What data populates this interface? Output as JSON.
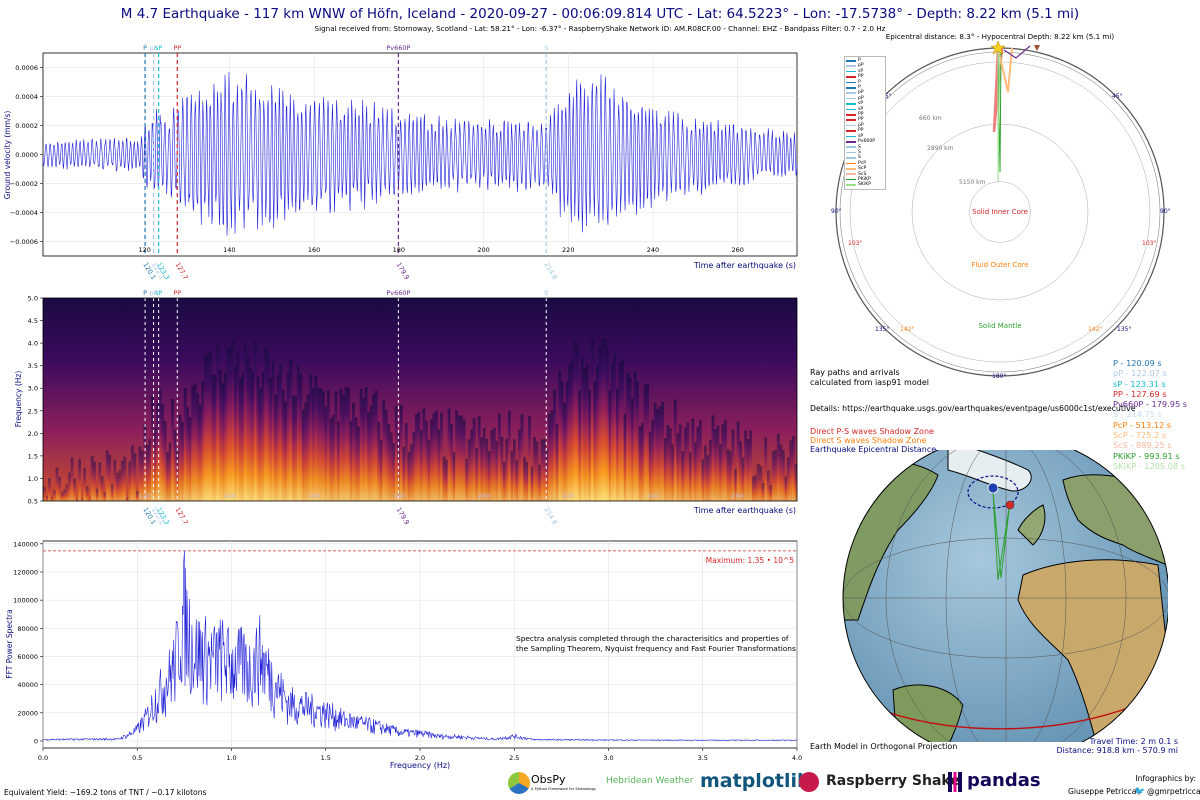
{
  "header": {
    "title": "M 4.7 Earthquake - 117 km WNW of Höfn, Iceland - 2020-09-27 - 00:06:09.814 UTC - Lat: 64.5223° - Lon: -17.5738° - Depth: 8.22 km (5.1 mi)",
    "subtitle": "Signal received from: Stornoway, Scotland - Lat: 58.21° - Lon: -6.37° - RaspberryShake Network ID: AM.R08CF.00 - Channel: EHZ - Bandpass Filter: 0.7 - 2.0 Hz"
  },
  "colors": {
    "trace": "#1f1fd8",
    "title": "#0a0a80",
    "P": "#1f77b4",
    "pP": "#aec7e8",
    "sP": "#17becf",
    "PP": "#d62728",
    "Pv660P": "#6a2c91",
    "S": "#9ecae1",
    "max_line": "#d62728"
  },
  "phases": [
    {
      "name": "P",
      "time": 120.1,
      "color": "#1f77b4"
    },
    {
      "name": "pP",
      "time": 122.1,
      "color": "#aec7e8"
    },
    {
      "name": "sP",
      "time": 123.3,
      "color": "#17becf"
    },
    {
      "name": "PP",
      "time": 127.7,
      "color": "#d62728"
    },
    {
      "name": "Pv660P",
      "time": 179.9,
      "color": "#6a2c91"
    },
    {
      "name": "S",
      "time": 214.8,
      "color": "#9ecae1"
    }
  ],
  "phase_time_labels": [
    "120.1",
    "122.1",
    "123.3",
    "127.7",
    "179.9",
    "214.8"
  ],
  "chart_data": [
    {
      "type": "line",
      "name": "waveform",
      "xlabel": "Time after earthquake (s)",
      "ylabel": "Ground velocity (mm/s)",
      "xlim": [
        96,
        274
      ],
      "ylim": [
        -0.0007,
        0.0007
      ],
      "xticks": [
        120,
        140,
        160,
        180,
        200,
        220,
        240,
        260
      ],
      "yticks": [
        -0.0006,
        -0.0004,
        -0.0002,
        0.0,
        0.0002,
        0.0004,
        0.0006
      ],
      "ytick_labels": [
        "−0.0006",
        "−0.0004",
        "−0.0002",
        "0.0000",
        "0.0002",
        "0.0004",
        "0.0006"
      ],
      "envelope": [
        [
          96,
          0.0001
        ],
        [
          110,
          0.00012
        ],
        [
          119,
          0.00012
        ],
        [
          120.5,
          0.00028
        ],
        [
          123,
          0.00038
        ],
        [
          125,
          0.0003
        ],
        [
          128,
          0.00035
        ],
        [
          130,
          0.00045
        ],
        [
          133,
          0.00052
        ],
        [
          137,
          0.00058
        ],
        [
          140,
          0.00062
        ],
        [
          145,
          0.00058
        ],
        [
          150,
          0.00052
        ],
        [
          155,
          0.00048
        ],
        [
          160,
          0.00045
        ],
        [
          170,
          0.0004
        ],
        [
          180,
          0.00032
        ],
        [
          190,
          0.00028
        ],
        [
          200,
          0.00026
        ],
        [
          210,
          0.00028
        ],
        [
          214,
          0.00024
        ],
        [
          217,
          0.0004
        ],
        [
          222,
          0.00058
        ],
        [
          228,
          0.0006
        ],
        [
          235,
          0.00045
        ],
        [
          245,
          0.00032
        ],
        [
          255,
          0.00026
        ],
        [
          265,
          0.0002
        ],
        [
          274,
          0.00016
        ]
      ]
    },
    {
      "type": "heatmap",
      "name": "spectrogram",
      "xlabel": "Time after earthquake (s)",
      "ylabel": "Frequency (Hz)",
      "xlim": [
        96,
        274
      ],
      "ylim": [
        0.5,
        5.0
      ],
      "xticks": [
        120,
        140,
        160,
        180,
        200,
        220,
        240,
        260
      ],
      "yticks": [
        0.5,
        1.0,
        1.5,
        2.0,
        2.5,
        3.0,
        3.5,
        4.0,
        4.5,
        5.0
      ],
      "colormap": "inferno"
    },
    {
      "type": "line",
      "name": "spectrum",
      "xlabel": "Frequency (Hz)",
      "ylabel": "FFT Power Spectra",
      "xlim": [
        0.0,
        4.0
      ],
      "ylim": [
        -5000,
        142000
      ],
      "xticks": [
        0.0,
        0.5,
        1.0,
        1.5,
        2.0,
        2.5,
        3.0,
        3.5,
        4.0
      ],
      "yticks": [
        0,
        20000,
        40000,
        60000,
        80000,
        100000,
        120000,
        140000
      ],
      "maximum": 135000,
      "maximum_label": "Maximum: 1.35 • 10^5",
      "annotation": "Spectra analysis completed through the characterisitics and properties of\nthe Sampling Theorem, Nyquist frequency and Fast Fourier Transformations",
      "envelope": [
        [
          0.0,
          1500
        ],
        [
          0.4,
          2000
        ],
        [
          0.45,
          6000
        ],
        [
          0.5,
          12000
        ],
        [
          0.55,
          25000
        ],
        [
          0.6,
          45000
        ],
        [
          0.65,
          60000
        ],
        [
          0.7,
          80000
        ],
        [
          0.75,
          135000
        ],
        [
          0.8,
          95000
        ],
        [
          0.85,
          92000
        ],
        [
          0.9,
          85000
        ],
        [
          0.95,
          90000
        ],
        [
          1.0,
          80000
        ],
        [
          1.05,
          82000
        ],
        [
          1.1,
          75000
        ],
        [
          1.15,
          90000
        ],
        [
          1.2,
          70000
        ],
        [
          1.25,
          55000
        ],
        [
          1.3,
          40000
        ],
        [
          1.4,
          35000
        ],
        [
          1.5,
          30000
        ],
        [
          1.6,
          22000
        ],
        [
          1.7,
          18000
        ],
        [
          1.8,
          14000
        ],
        [
          1.9,
          9000
        ],
        [
          2.0,
          8000
        ],
        [
          2.1,
          5000
        ],
        [
          2.2,
          4500
        ],
        [
          2.3,
          3000
        ],
        [
          2.4,
          2000
        ],
        [
          2.5,
          5000
        ],
        [
          2.6,
          1500
        ],
        [
          3.0,
          1000
        ],
        [
          3.5,
          800
        ],
        [
          4.0,
          800
        ]
      ]
    }
  ],
  "polar": {
    "header": "Epicentral distance: 8.3° - Hypocentral Depth: 8.22 km (5.1 mi)",
    "depth_labels": [
      "660 km",
      "2890 km",
      "5150 km"
    ],
    "angle_labels": [
      "45°",
      "45°",
      "90°",
      "90°",
      "135°",
      "135°",
      "180°"
    ],
    "shadow_labels": [
      "103°",
      "103°",
      "142°",
      "142°"
    ],
    "zones": [
      "Solid Inner Core",
      "Fluid Outer Core",
      "Solid Mantle"
    ],
    "legend": [
      "P",
      "pP",
      "sP",
      "PP",
      "P",
      "P",
      "pP",
      "pP",
      "sP",
      "sP",
      "PP",
      "PP",
      "pP",
      "PP",
      "sP",
      "Pv660P",
      "S",
      "S",
      "S",
      "PcP",
      "ScP",
      "ScS",
      "PKiKP",
      "SKiKP"
    ],
    "legend_colors": [
      "#1f77b4",
      "#aec7e8",
      "#17becf",
      "#d62728",
      "#1f77b4",
      "#1f77b4",
      "#aec7e8",
      "#aec7e8",
      "#17becf",
      "#17becf",
      "#d62728",
      "#d62728",
      "#aec7e8",
      "#d62728",
      "#17becf",
      "#6a2c91",
      "#9ecae1",
      "#9ecae1",
      "#9ecae1",
      "#ff7f0e",
      "#ffbb78",
      "#f7b6a0",
      "#2ca02c",
      "#98df8a"
    ]
  },
  "info": {
    "ray_paths": "Ray paths and arrivals\ncalculated from iasp91 model",
    "details": "Details: https://earthquake.usgs.gov/earthquakes/eventpage/us6000c1st/executive",
    "legend_lines": [
      "Direct P-S waves Shadow Zone",
      "Direct S waves Shadow Zone",
      "Earthquake Epicentral Distance"
    ],
    "legend_line_colors": [
      "#d62728",
      "#ff7f0e",
      "#0a0a80"
    ]
  },
  "arrivals": [
    {
      "label": "P - 120.09 s",
      "color": "#1f77b4"
    },
    {
      "label": "pP - 122.07 s",
      "color": "#aec7e8"
    },
    {
      "label": "sP - 123.31 s",
      "color": "#17becf"
    },
    {
      "label": "PP - 127.69 s",
      "color": "#d62728"
    },
    {
      "label": "Pv660P - 179.95 s",
      "color": "#6a2c91"
    },
    {
      "label": "S - 214.75 s",
      "color": "#c6dbef"
    },
    {
      "label": "PcP - 513.12 s",
      "color": "#ff7f0e"
    },
    {
      "label": "ScP - 725.2 s",
      "color": "#ffbb78"
    },
    {
      "label": "ScS - 889.25 s",
      "color": "#f7b6a0"
    },
    {
      "label": "PKiKP - 993.91 s",
      "color": "#2ca02c"
    },
    {
      "label": "SKiKP - 1205.08 s",
      "color": "#b5e2a8"
    }
  ],
  "globe": {
    "caption": "Earth Model in Orthogonal Projection",
    "travel_time": "Travel Time: 2 m 0.1 s",
    "distance": "Distance: 918.8 km - 570.9 mi"
  },
  "footer": {
    "yield": "Equivalent Yield: ~169.2 tons of TNT / ~0.17 kilotons",
    "logos": [
      "ObsPy",
      "A Python Framework for Seismology",
      "Hebridean Weather",
      "matplotlib",
      "Raspberry Shake",
      "pandas"
    ],
    "credit_title": "Infographics by:",
    "credit_name": "Giuseppe Petricca",
    "credit_handle": "@gmrpetricca"
  }
}
